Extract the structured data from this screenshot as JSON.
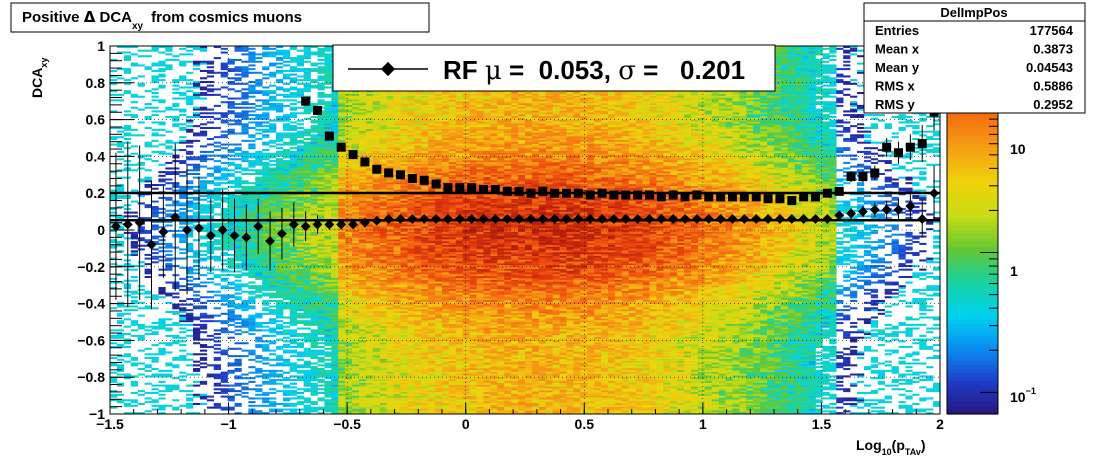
{
  "title": {
    "prefix": "Positive",
    "delta": "Δ",
    "dca": "DCA",
    "dca_sub": "xy",
    "suffix": "from cosmics muons"
  },
  "stats": {
    "name": "DelImpPos",
    "rows": [
      {
        "label": "Entries",
        "value": "177564"
      },
      {
        "label": "Mean x",
        "value": "0.3873"
      },
      {
        "label": "Mean y",
        "value": "0.04543"
      },
      {
        "label": "RMS x",
        "value": "0.5886"
      },
      {
        "label": "RMS y",
        "value": "0.2952"
      }
    ]
  },
  "legend": {
    "text_rf": "RF",
    "mu": "μ",
    "mean_part": " =  0.053, ",
    "sigma": "σ",
    "sigma_part": " =   0.201"
  },
  "colorbar": {
    "labels": [
      "10",
      "1",
      "10"
    ],
    "exp": "−1"
  },
  "colors": {
    "scale": [
      "#261478",
      "#1e3cc8",
      "#0a8cf0",
      "#00d2f0",
      "#18d2a0",
      "#64c832",
      "#c8dc14",
      "#f0d20a",
      "#f5a014",
      "#f56e10",
      "#e63c0a",
      "#b41e08"
    ],
    "marker": "#000000",
    "axis": "#000000"
  },
  "chart_data": {
    "type": "heatmap",
    "xlabel": {
      "main": "Log",
      "sub1": "10",
      "mid": "(p",
      "sub2": "TAv",
      "end": ")"
    },
    "ylabel": {
      "main": "DCA",
      "sub": "xy"
    },
    "xlim": [
      -1.5,
      2
    ],
    "ylim": [
      -1,
      1
    ],
    "z_scale": "log",
    "z_range": [
      0.07,
      30
    ],
    "x_ticks": [
      "−1.5",
      "−1",
      "−0.5",
      "0",
      "0.5",
      "1",
      "1.5",
      "2"
    ],
    "x_tick_values": [
      -1.5,
      -1,
      -0.5,
      0,
      0.5,
      1,
      1.5,
      2
    ],
    "y_ticks": [
      "−1",
      "−0.8",
      "−0.6",
      "−0.4",
      "−0.2",
      "0",
      "0.2",
      "0.4",
      "0.6",
      "0.8",
      "1"
    ],
    "y_tick_values": [
      -1,
      -0.8,
      -0.6,
      -0.4,
      -0.2,
      0,
      0.2,
      0.4,
      0.6,
      0.8,
      1
    ],
    "grid": true,
    "fit_lines": [
      {
        "name": "mean",
        "value": 0.053
      },
      {
        "name": "sigma",
        "value": 0.201
      }
    ],
    "series": [
      {
        "name": "RF",
        "marker": "diamond",
        "x": [
          -1.475,
          -1.425,
          -1.375,
          -1.325,
          -1.275,
          -1.225,
          -1.175,
          -1.125,
          -1.075,
          -1.025,
          -0.975,
          -0.925,
          -0.875,
          -0.825,
          -0.775,
          -0.725,
          -0.675,
          -0.625,
          -0.575,
          -0.525,
          -0.475,
          -0.425,
          -0.375,
          -0.325,
          -0.275,
          -0.225,
          -0.175,
          -0.125,
          -0.075,
          -0.025,
          0.025,
          0.075,
          0.125,
          0.175,
          0.225,
          0.275,
          0.325,
          0.375,
          0.425,
          0.475,
          0.525,
          0.575,
          0.625,
          0.675,
          0.725,
          0.775,
          0.825,
          0.875,
          0.925,
          0.975,
          1.025,
          1.075,
          1.125,
          1.175,
          1.225,
          1.275,
          1.325,
          1.375,
          1.425,
          1.475,
          1.525,
          1.575,
          1.625,
          1.675,
          1.725,
          1.775,
          1.825,
          1.875,
          1.925,
          1.975
        ],
        "y": [
          0.02,
          0.03,
          0.04,
          -0.08,
          -0.01,
          0.07,
          0.0,
          0.01,
          -0.03,
          0.0,
          -0.03,
          -0.04,
          0.02,
          -0.06,
          -0.02,
          0.03,
          0.02,
          0.03,
          0.03,
          0.03,
          0.03,
          0.04,
          0.05,
          0.06,
          0.06,
          0.06,
          0.06,
          0.06,
          0.06,
          0.06,
          0.06,
          0.06,
          0.06,
          0.06,
          0.06,
          0.06,
          0.06,
          0.06,
          0.06,
          0.06,
          0.06,
          0.06,
          0.06,
          0.06,
          0.06,
          0.06,
          0.06,
          0.06,
          0.06,
          0.06,
          0.06,
          0.06,
          0.06,
          0.06,
          0.06,
          0.06,
          0.06,
          0.06,
          0.06,
          0.06,
          0.06,
          0.08,
          0.09,
          0.1,
          0.11,
          0.11,
          0.11,
          0.13,
          0.06,
          0.2
        ],
        "err": [
          0.4,
          0.45,
          0.42,
          0.35,
          0.25,
          0.4,
          0.35,
          0.28,
          0.2,
          0.22,
          0.2,
          0.18,
          0.15,
          0.16,
          0.14,
          0.12,
          0.08,
          0.05,
          0.03,
          0.02,
          0.02,
          0.01,
          0.01,
          0.01,
          0.01,
          0.01,
          0.01,
          0.01,
          0.01,
          0.01,
          0.01,
          0.01,
          0.01,
          0.01,
          0.01,
          0.01,
          0.01,
          0.01,
          0.01,
          0.01,
          0.01,
          0.01,
          0.01,
          0.01,
          0.01,
          0.01,
          0.01,
          0.01,
          0.01,
          0.01,
          0.01,
          0.01,
          0.01,
          0.01,
          0.01,
          0.01,
          0.01,
          0.01,
          0.01,
          0.01,
          0.02,
          0.02,
          0.03,
          0.03,
          0.04,
          0.05,
          0.06,
          0.07,
          0.1,
          0.15
        ]
      },
      {
        "name": "",
        "marker": "square",
        "x": [
          -0.675,
          -0.625,
          -0.575,
          -0.525,
          -0.475,
          -0.425,
          -0.375,
          -0.325,
          -0.275,
          -0.225,
          -0.175,
          -0.125,
          -0.075,
          -0.025,
          0.025,
          0.075,
          0.125,
          0.175,
          0.225,
          0.275,
          0.325,
          0.375,
          0.425,
          0.475,
          0.525,
          0.575,
          0.625,
          0.675,
          0.725,
          0.775,
          0.825,
          0.875,
          0.925,
          0.975,
          1.025,
          1.075,
          1.125,
          1.175,
          1.225,
          1.275,
          1.325,
          1.375,
          1.425,
          1.475,
          1.525,
          1.575,
          1.625,
          1.675,
          1.725,
          1.775,
          1.825,
          1.875,
          1.925,
          1.975
        ],
        "y": [
          0.7,
          0.65,
          0.51,
          0.45,
          0.41,
          0.37,
          0.33,
          0.31,
          0.3,
          0.28,
          0.27,
          0.25,
          0.23,
          0.23,
          0.23,
          0.22,
          0.22,
          0.21,
          0.21,
          0.2,
          0.21,
          0.2,
          0.2,
          0.2,
          0.19,
          0.2,
          0.19,
          0.19,
          0.19,
          0.19,
          0.18,
          0.19,
          0.18,
          0.19,
          0.18,
          0.18,
          0.18,
          0.18,
          0.18,
          0.17,
          0.17,
          0.16,
          0.18,
          0.18,
          0.2,
          0.21,
          0.29,
          0.29,
          0.31,
          0.45,
          0.42,
          0.45,
          0.47,
          0.64
        ],
        "err": [
          0.02,
          0.02,
          0.02,
          0.01,
          0.01,
          0.01,
          0.01,
          0.01,
          0.01,
          0.01,
          0.01,
          0.01,
          0.01,
          0.01,
          0.01,
          0.01,
          0.01,
          0.01,
          0.01,
          0.01,
          0.01,
          0.01,
          0.01,
          0.01,
          0.01,
          0.01,
          0.01,
          0.01,
          0.01,
          0.01,
          0.01,
          0.01,
          0.01,
          0.01,
          0.01,
          0.01,
          0.01,
          0.01,
          0.01,
          0.01,
          0.01,
          0.01,
          0.01,
          0.01,
          0.02,
          0.02,
          0.03,
          0.03,
          0.04,
          0.05,
          0.06,
          0.07,
          0.1,
          0.1
        ]
      }
    ]
  }
}
